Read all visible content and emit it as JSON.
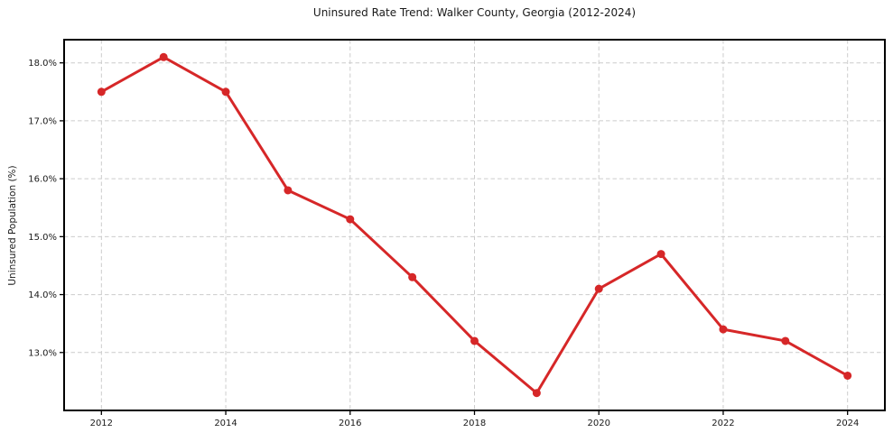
{
  "page": {
    "background": "#ffffff"
  },
  "chart_data": {
    "type": "line",
    "title": "Uninsured Rate Trend: Walker County, Georgia (2012-2024)",
    "ylabel": "Uninsured Population (%)",
    "xlabel": "",
    "x": [
      2012,
      2013,
      2014,
      2015,
      2016,
      2017,
      2018,
      2019,
      2020,
      2021,
      2022,
      2023,
      2024
    ],
    "series": [
      {
        "values": [
          17.5,
          18.1,
          17.5,
          15.8,
          15.3,
          14.3,
          13.2,
          12.3,
          14.1,
          14.7,
          13.4,
          13.2,
          12.6
        ],
        "color": "#d62728",
        "line_width": 3,
        "marker": "circle",
        "marker_radius": 4.5
      }
    ],
    "xticks": [
      2012,
      2014,
      2016,
      2018,
      2020,
      2022,
      2024
    ],
    "yticks": [
      13.0,
      14.0,
      15.0,
      16.0,
      17.0,
      18.0
    ],
    "ytick_decimals": 1,
    "ytick_suffix": "%",
    "xlim": [
      2011.4,
      2024.6
    ],
    "ylim": [
      12.0,
      18.4
    ],
    "grid": true,
    "grid_color": "#cccccc",
    "axis_color": "#000000",
    "text_color": "#1a1a1a",
    "legend_position": "none"
  }
}
